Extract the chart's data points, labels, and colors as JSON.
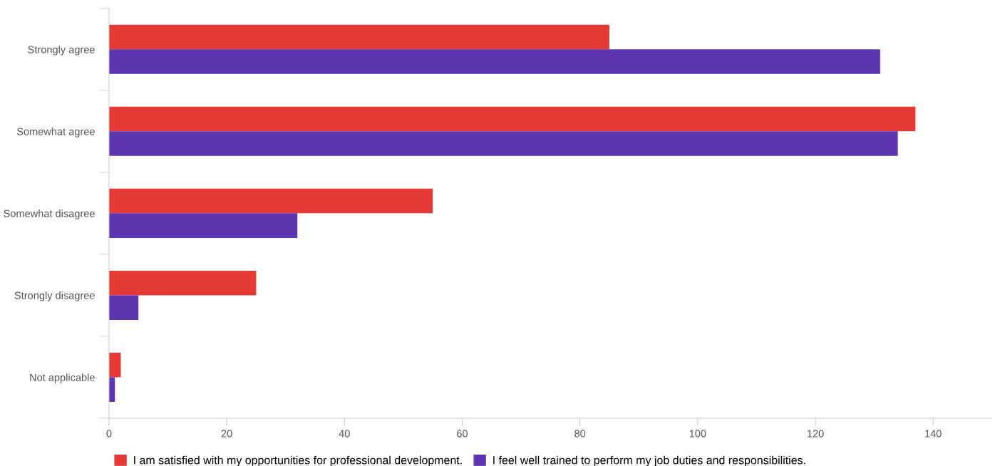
{
  "chart_data": {
    "type": "bar",
    "orientation": "horizontal",
    "categories": [
      "Strongly agree",
      "Somewhat agree",
      "Somewhat disagree",
      "Strongly disagree",
      "Not applicable"
    ],
    "series": [
      {
        "name": "I am satisfied with my opportunities for professional development.",
        "color": "#e53935",
        "values": [
          85,
          137,
          55,
          25,
          2
        ]
      },
      {
        "name": "I feel well trained to perform my job duties and responsibilities.",
        "color": "#5e35b1",
        "values": [
          131,
          134,
          32,
          5,
          1
        ]
      }
    ],
    "xlim": [
      0,
      150
    ],
    "xticks": [
      0,
      20,
      40,
      60,
      80,
      100,
      120,
      140
    ],
    "grid": false,
    "legend": "bottom"
  }
}
